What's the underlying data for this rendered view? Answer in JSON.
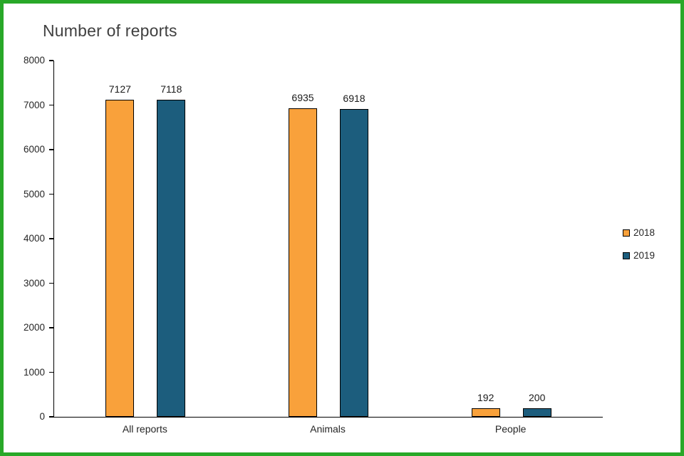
{
  "frame": {
    "border_color": "#28A828",
    "background": "#ffffff"
  },
  "chart_data": {
    "type": "bar",
    "title": "Number of reports",
    "categories": [
      "All reports",
      "Animals",
      "People"
    ],
    "series": [
      {
        "name": "2018",
        "color": "#F9A13B",
        "values": [
          7127,
          6935,
          192
        ]
      },
      {
        "name": "2019",
        "color": "#1C5D7D",
        "values": [
          7118,
          6918,
          200
        ]
      }
    ],
    "ylim": [
      0,
      8000
    ],
    "ytick_step": 1000,
    "grid": false,
    "legend_position": "right",
    "xlabel": "",
    "ylabel": "",
    "axis_color": "#000000",
    "title_color": "#404040",
    "label_color": "#262626"
  }
}
